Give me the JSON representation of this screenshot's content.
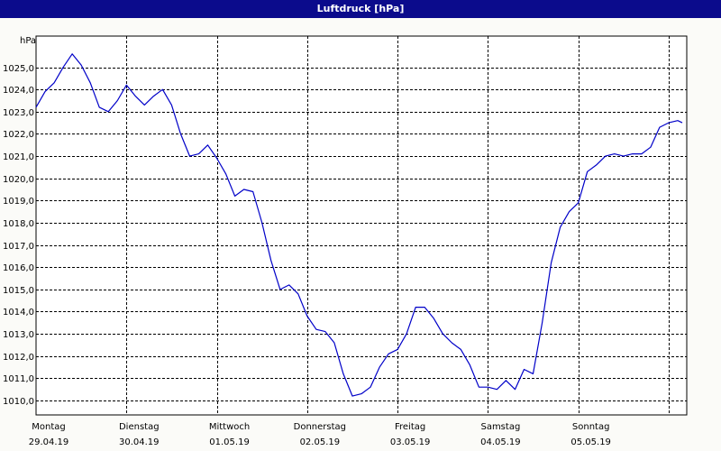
{
  "window": {
    "title": "Luftdruck [hPa]"
  },
  "colors": {
    "titlebar": "#0b0b8c",
    "line": "#0000c8",
    "grid": "#000000",
    "background": "#fbfbf8"
  },
  "chart_data": {
    "type": "line",
    "title": "Luftdruck [hPa]",
    "ylabel": "hPa",
    "xlabel": "",
    "grid": true,
    "ylim": [
      1009.3,
      1026.4
    ],
    "y_ticks": [
      "1010,0",
      "1011,0",
      "1012,0",
      "1013,0",
      "1014,0",
      "1015,0",
      "1016,0",
      "1017,0",
      "1018,0",
      "1019,0",
      "1020,0",
      "1021,0",
      "1022,0",
      "1023,0",
      "1024,0",
      "1025,0"
    ],
    "y_tick_values": [
      1010,
      1011,
      1012,
      1013,
      1014,
      1015,
      1016,
      1017,
      1018,
      1019,
      1020,
      1021,
      1022,
      1023,
      1024,
      1025
    ],
    "xlim_days": [
      0,
      7.2
    ],
    "x_ticks": [
      {
        "day": "Montag",
        "date": "29.04.19"
      },
      {
        "day": "Dienstag",
        "date": "30.04.19"
      },
      {
        "day": "Mittwoch",
        "date": "01.05.19"
      },
      {
        "day": "Donnerstag",
        "date": "02.05.19"
      },
      {
        "day": "Freitag",
        "date": "03.05.19"
      },
      {
        "day": "Samstag",
        "date": "04.05.19"
      },
      {
        "day": "Sonntag",
        "date": "05.05.19"
      }
    ],
    "series": [
      {
        "x": [
          0,
          0.1,
          0.2,
          0.3,
          0.4,
          0.5,
          0.6,
          0.7,
          0.8,
          0.9,
          1.0,
          1.1,
          1.2,
          1.3,
          1.4,
          1.5,
          1.6,
          1.7,
          1.8,
          1.9,
          2.0,
          2.1,
          2.2,
          2.3,
          2.4,
          2.5,
          2.6,
          2.7,
          2.8,
          2.9,
          3.0,
          3.1,
          3.2,
          3.3,
          3.4,
          3.5,
          3.6,
          3.7,
          3.8,
          3.9,
          4.0,
          4.1,
          4.2,
          4.3,
          4.4,
          4.5,
          4.6,
          4.7,
          4.8,
          4.9,
          5.0,
          5.1,
          5.2,
          5.3,
          5.4,
          5.5,
          5.6,
          5.7,
          5.8,
          5.9,
          6.0,
          6.1,
          6.2,
          6.3,
          6.4,
          6.5,
          6.6,
          6.7,
          6.8,
          6.9,
          7.0,
          7.1,
          7.15
        ],
        "values": [
          1023.2,
          1023.9,
          1024.3,
          1025.0,
          1025.6,
          1025.1,
          1024.3,
          1023.2,
          1023.0,
          1023.5,
          1024.2,
          1023.7,
          1023.3,
          1023.7,
          1024.0,
          1023.3,
          1022.0,
          1021.0,
          1021.1,
          1021.5,
          1020.9,
          1020.2,
          1019.2,
          1019.5,
          1019.4,
          1018.0,
          1016.3,
          1015.0,
          1015.2,
          1014.8,
          1013.8,
          1013.2,
          1013.1,
          1012.6,
          1011.2,
          1010.2,
          1010.3,
          1010.6,
          1011.5,
          1012.1,
          1012.3,
          1013.0,
          1014.2,
          1014.2,
          1013.7,
          1013.0,
          1012.6,
          1012.3,
          1011.6,
          1010.6,
          1010.6,
          1010.5,
          1010.9,
          1010.5,
          1011.4,
          1011.2,
          1013.5,
          1016.2,
          1017.8,
          1018.5,
          1018.9,
          1020.3,
          1020.6,
          1021.0,
          1021.1,
          1021.0,
          1021.1,
          1021.1,
          1021.4,
          1022.3,
          1022.5,
          1022.6,
          1022.5
        ]
      }
    ]
  }
}
